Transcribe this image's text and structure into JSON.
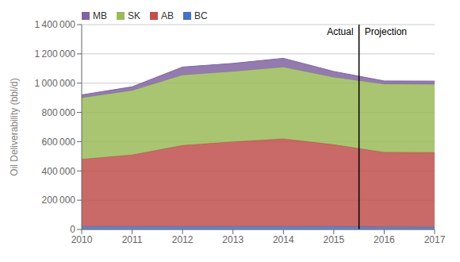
{
  "chart_data": {
    "type": "area",
    "stacked": true,
    "ylabel": "Oil Deliverability  (bbl/d)",
    "x": [
      2010,
      2011,
      2012,
      2013,
      2014,
      2015,
      2016,
      2017
    ],
    "series": [
      {
        "name": "BC",
        "color": "#4472C4",
        "values": [
          20000,
          20000,
          20000,
          20000,
          20000,
          20000,
          18000,
          17000
        ]
      },
      {
        "name": "AB",
        "color": "#C0504D",
        "values": [
          460000,
          490000,
          555000,
          580000,
          600000,
          560000,
          510000,
          510000
        ]
      },
      {
        "name": "SK",
        "color": "#9BBB59",
        "values": [
          420000,
          440000,
          480000,
          480000,
          490000,
          460000,
          465000,
          465000
        ]
      },
      {
        "name": "MB",
        "color": "#8064A2",
        "values": [
          20000,
          25000,
          55000,
          55000,
          60000,
          40000,
          22000,
          22000
        ]
      }
    ],
    "xlim": [
      2010,
      2017
    ],
    "xticks": [
      2010,
      2011,
      2012,
      2013,
      2014,
      2015,
      2016,
      2017
    ],
    "ylim": [
      0,
      1400000
    ],
    "yticks": [
      0,
      {
        "value": 200000,
        "label": "200 000"
      },
      {
        "value": 400000,
        "label": "400 000"
      },
      {
        "value": 600000,
        "label": "600 000"
      },
      {
        "value": 800000,
        "label": "800 000"
      },
      {
        "value": 1000000,
        "label": "1 000 000"
      },
      {
        "value": 1200000,
        "label": "1 200 000"
      },
      {
        "value": 1400000,
        "label": "1 400 000"
      }
    ],
    "vlines": [
      {
        "x": 2015.5,
        "color": "#000000"
      }
    ],
    "annotations": [
      {
        "text": "Actual",
        "x": 2015.5,
        "y": 1355000
      },
      {
        "text": "Projection",
        "x": 2015.5,
        "y": 1355000
      }
    ],
    "grid": true,
    "legend": "upper left"
  }
}
